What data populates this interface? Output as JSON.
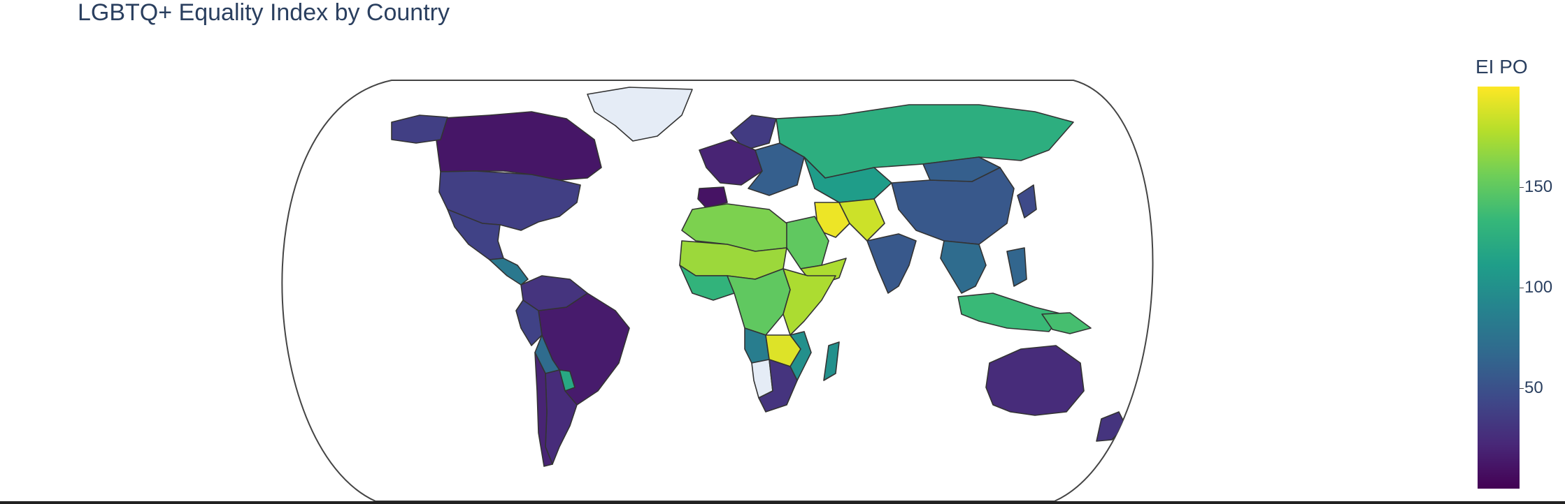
{
  "chart_data": {
    "type": "choropleth",
    "title": "LGBTQ+ Equality Index by Country",
    "projection": "natural earth",
    "colorscale": "Viridis",
    "colorbar": {
      "title": "EI PO",
      "ticks": [
        50,
        100,
        150
      ],
      "range": [
        0,
        200
      ]
    },
    "missing_color": "#e5ecf6",
    "regions": [
      {
        "name": "Canada",
        "value": 12
      },
      {
        "name": "United States",
        "value": 38
      },
      {
        "name": "Alaska",
        "value": 38
      },
      {
        "name": "Mexico",
        "value": 40
      },
      {
        "name": "Central America",
        "value": 80
      },
      {
        "name": "Greenland",
        "value": null
      },
      {
        "name": "Brazil",
        "value": 15
      },
      {
        "name": "Colombia/Venezuela",
        "value": 30
      },
      {
        "name": "Peru",
        "value": 40
      },
      {
        "name": "Bolivia",
        "value": 70
      },
      {
        "name": "Paraguay",
        "value": 120
      },
      {
        "name": "Argentina",
        "value": 25
      },
      {
        "name": "Chile",
        "value": 20
      },
      {
        "name": "Iceland/Nordics",
        "value": 35
      },
      {
        "name": "Western Europe",
        "value": 20
      },
      {
        "name": "Spain/Portugal",
        "value": 10
      },
      {
        "name": "Eastern Europe",
        "value": 60
      },
      {
        "name": "Russia",
        "value": 125
      },
      {
        "name": "Kazakhstan/Central Asia",
        "value": 110
      },
      {
        "name": "China",
        "value": 55
      },
      {
        "name": "Mongolia",
        "value": 60
      },
      {
        "name": "Japan",
        "value": 45
      },
      {
        "name": "India",
        "value": 55
      },
      {
        "name": "Iran",
        "value": 195
      },
      {
        "name": "Afghanistan/Pakistan",
        "value": 185
      },
      {
        "name": "Saudi Arabia",
        "value": 150
      },
      {
        "name": "Yemen/Oman",
        "value": 175
      },
      {
        "name": "North Africa",
        "value": 160
      },
      {
        "name": "Sahel",
        "value": 170
      },
      {
        "name": "West Africa",
        "value": 130
      },
      {
        "name": "Central Africa",
        "value": 150
      },
      {
        "name": "East Africa",
        "value": 175
      },
      {
        "name": "Angola",
        "value": 85
      },
      {
        "name": "Namibia",
        "value": null
      },
      {
        "name": "Zambia/Zimbabwe",
        "value": 190
      },
      {
        "name": "Mozambique",
        "value": 100
      },
      {
        "name": "Madagascar",
        "value": 100
      },
      {
        "name": "South Africa",
        "value": 30
      },
      {
        "name": "Southeast Asia",
        "value": 70
      },
      {
        "name": "Indonesia/Malaysia",
        "value": 135
      },
      {
        "name": "Philippines",
        "value": 65
      },
      {
        "name": "Papua New Guinea",
        "value": 140
      },
      {
        "name": "Australia",
        "value": 25
      },
      {
        "name": "New Zealand",
        "value": 30
      }
    ]
  }
}
